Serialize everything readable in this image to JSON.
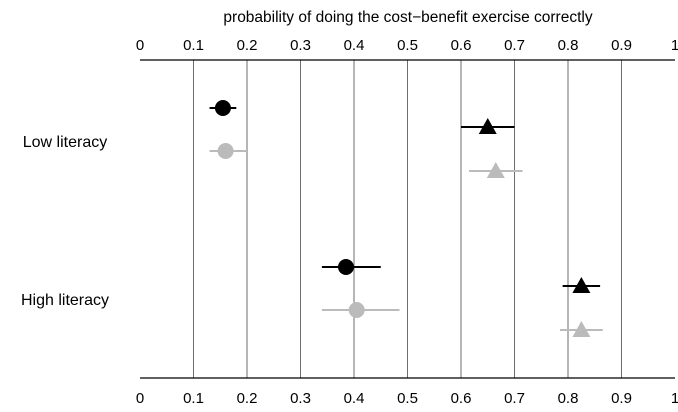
{
  "chart_data": {
    "type": "scatter",
    "title": "",
    "xlabel": "probability of doing the cost−benefit exercise correctly",
    "ylabel": "",
    "xlim": [
      0,
      1
    ],
    "xticks": [
      0,
      0.1,
      0.2,
      0.3,
      0.4,
      0.5,
      0.6,
      0.7,
      0.8,
      0.9,
      1
    ],
    "xtick_labels": [
      "0",
      "0.1",
      "0.2",
      "0.3",
      "0.4",
      "0.5",
      "0.6",
      "0.7",
      "0.8",
      "0.9",
      "1"
    ],
    "grid": "vertical",
    "legend": null,
    "categories": [
      "Low literacy",
      "High literacy"
    ],
    "series": [
      {
        "marker": "circle",
        "color": "#000000",
        "values": [
          0.155,
          0.385
        ],
        "ci_low": [
          0.13,
          0.34
        ],
        "ci_high": [
          0.18,
          0.45
        ]
      },
      {
        "marker": "circle",
        "color": "#bbbbbb",
        "values": [
          0.16,
          0.405
        ],
        "ci_low": [
          0.13,
          0.34
        ],
        "ci_high": [
          0.2,
          0.485
        ]
      },
      {
        "marker": "triangle",
        "color": "#000000",
        "values": [
          0.65,
          0.825
        ],
        "ci_low": [
          0.6,
          0.79
        ],
        "ci_high": [
          0.7,
          0.86
        ]
      },
      {
        "marker": "triangle",
        "color": "#bbbbbb",
        "values": [
          0.665,
          0.825
        ],
        "ci_low": [
          0.615,
          0.785
        ],
        "ci_high": [
          0.715,
          0.865
        ]
      }
    ]
  }
}
